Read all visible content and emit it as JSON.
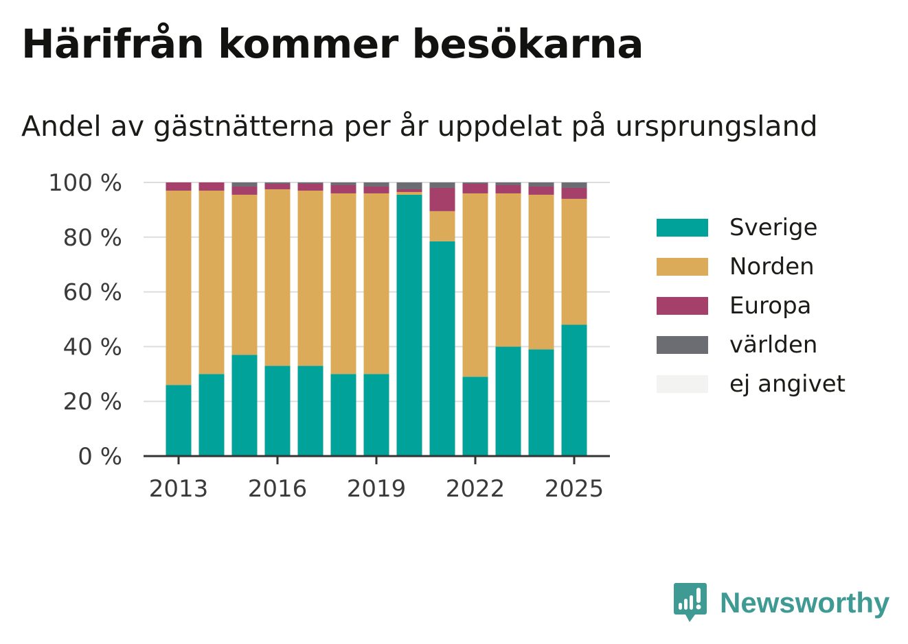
{
  "header": {
    "title": "Härifrån kommer besökarna",
    "subtitle": "Andel av gästnätterna per år uppdelat på ursprungsland"
  },
  "brand": {
    "name": "Newsworthy",
    "icon": "bar-chart-speech-bubble-icon",
    "color": "#3f9a94"
  },
  "chart_data": {
    "type": "bar",
    "stacked": true,
    "title": "Härifrån kommer besökarna",
    "subtitle": "Andel av gästnätterna per år uppdelat på ursprungsland",
    "xlabel": "",
    "ylabel": "",
    "categories": [
      "2013",
      "2014",
      "2015",
      "2016",
      "2017",
      "2018",
      "2019",
      "2020",
      "2021",
      "2022",
      "2023",
      "2024",
      "2025"
    ],
    "x_tick_labels": [
      "2013",
      "2016",
      "2019",
      "2022",
      "2025"
    ],
    "y_ticks": [
      0,
      20,
      40,
      60,
      80,
      100
    ],
    "y_tick_labels": [
      "0 %",
      "20 %",
      "40 %",
      "60 %",
      "80 %",
      "100 %"
    ],
    "ylim": [
      0,
      100
    ],
    "grid": "horizontal dotted",
    "legend_position": "right",
    "series": [
      {
        "name": "Sverige",
        "color": "#00a29a",
        "values": [
          26,
          30,
          37,
          33,
          33,
          30,
          30,
          95.5,
          78.5,
          29,
          40,
          39,
          48
        ]
      },
      {
        "name": "Norden",
        "color": "#dbab5a",
        "values": [
          71,
          67,
          58.5,
          64.5,
          64,
          66,
          66,
          1,
          11,
          67,
          56,
          56.5,
          46
        ]
      },
      {
        "name": "Europa",
        "color": "#a5406a",
        "values": [
          3,
          3,
          3,
          2,
          2.5,
          3,
          2.5,
          1,
          8.5,
          3.5,
          3,
          3,
          4
        ]
      },
      {
        "name": "världen",
        "color": "#6c6c73",
        "values": [
          0,
          0,
          1.5,
          0.5,
          0.5,
          1,
          1.5,
          2.5,
          2,
          0.5,
          1,
          1.5,
          2
        ]
      },
      {
        "name": "ej angivet",
        "color": "#f3f3f1",
        "values": [
          0,
          0,
          0,
          0,
          0,
          0,
          0,
          0,
          0,
          0,
          0,
          0,
          0
        ]
      }
    ]
  }
}
